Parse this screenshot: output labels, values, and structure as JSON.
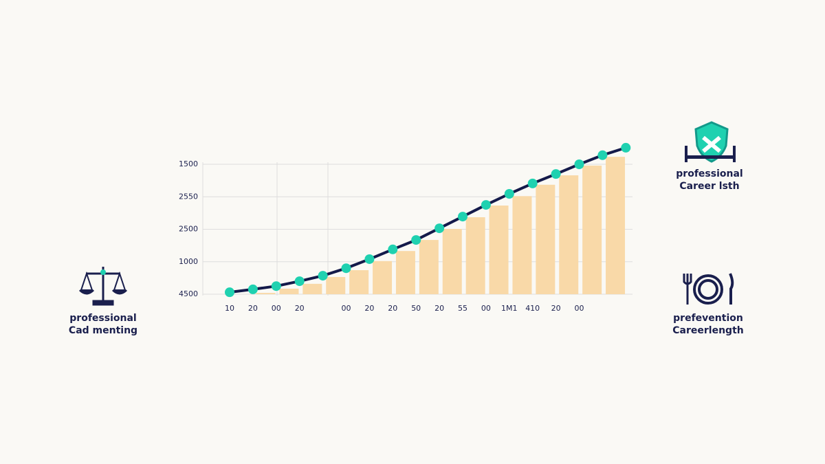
{
  "chart_data": {
    "type": "bar_line",
    "categories": [
      "10",
      "20",
      "00",
      "20",
      null,
      "00",
      "20",
      "20",
      "50",
      "20",
      "55",
      "00",
      "1M1",
      "410",
      "20",
      "00",
      null,
      null
    ],
    "series": [
      {
        "type": "bar",
        "color": "#f9d9a8",
        "values": [
          null,
          null,
          0.04,
          0.17,
          0.32,
          0.53,
          0.74,
          1.02,
          1.33,
          1.67,
          2.01,
          2.37,
          2.73,
          3.02,
          3.37,
          3.66,
          3.96,
          4.23
        ]
      },
      {
        "type": "line",
        "color": "#141a4a",
        "marker_color": "#1fd1b0",
        "values": [
          0.06,
          0.15,
          0.25,
          0.4,
          0.57,
          0.8,
          1.08,
          1.38,
          1.67,
          2.03,
          2.39,
          2.75,
          3.09,
          3.41,
          3.7,
          4.0,
          4.28,
          4.51
        ]
      }
    ],
    "ylim": [
      0,
      4
    ],
    "yticks": [
      {
        "value": 0,
        "label": "4500"
      },
      {
        "value": 1,
        "label": "1000"
      },
      {
        "value": 2,
        "label": "2500"
      },
      {
        "value": 3,
        "label": "2550"
      },
      {
        "value": 4,
        "label": "1500"
      }
    ],
    "grid": true
  },
  "side_labels": [
    {
      "line1": "professional",
      "line2": "Cad menting"
    },
    {
      "line1": "professional",
      "line2": "Career lsth"
    },
    {
      "line1": "prefevention",
      "line2": "Careerlength"
    }
  ]
}
